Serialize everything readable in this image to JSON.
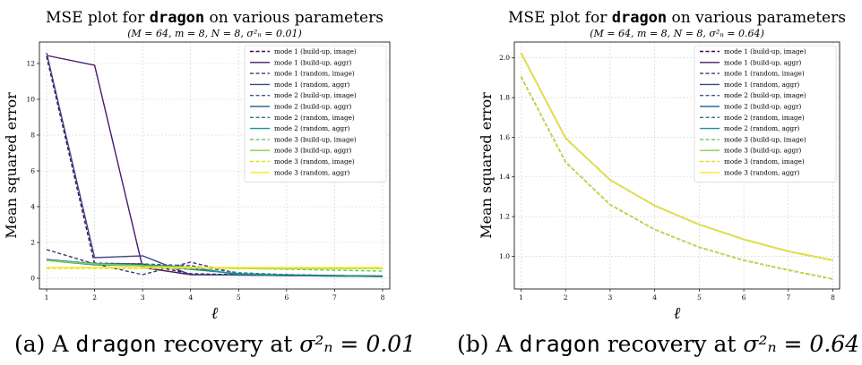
{
  "captions": [
    {
      "prefix": "(a) A ",
      "mono": "dragon",
      "suffix": " recovery at ",
      "math": "σ²ₙ = 0.01"
    },
    {
      "prefix": "(b) A ",
      "mono": "dragon",
      "suffix": " recovery at ",
      "math": "σ²ₙ = 0.64"
    }
  ],
  "chart_data": [
    {
      "type": "line",
      "title_prefix": "MSE plot for ",
      "title_mono": "dragon",
      "title_suffix": " on various parameters",
      "subtitle": "(M = 64, m = 8, N = 8, σ²ₙ = 0.01)",
      "xlabel": "ℓ",
      "ylabel": "Mean squared error",
      "x": [
        1,
        2,
        3,
        4,
        5,
        6,
        7,
        8
      ],
      "xticks": [
        "1",
        "2",
        "3",
        "4",
        "5",
        "6",
        "7",
        "8"
      ],
      "yticks": [
        0,
        2,
        4,
        6,
        8,
        10,
        12
      ],
      "ytick_labels": [
        "0",
        "2",
        "4",
        "6",
        "8",
        "10",
        "12"
      ],
      "xlim": [
        0.85,
        8.15
      ],
      "ylim": [
        -0.6,
        13.2
      ],
      "grid": true,
      "legend_position": "top-right",
      "series": [
        {
          "name": "mode 1 (build-up, image)",
          "color": "#440154",
          "dash": true,
          "values": [
            12.4,
            0.8,
            0.8,
            0.25,
            0.2,
            0.18,
            0.15,
            0.12
          ]
        },
        {
          "name": "mode 1 (build-up, aggr)",
          "color": "#481a6c",
          "dash": false,
          "values": [
            12.45,
            11.9,
            0.6,
            0.2,
            0.18,
            0.15,
            0.13,
            0.1
          ]
        },
        {
          "name": "mode 1 (random, image)",
          "color": "#472f7d",
          "dash": true,
          "values": [
            1.6,
            0.8,
            0.2,
            0.9,
            0.25,
            0.2,
            0.15,
            0.12
          ]
        },
        {
          "name": "mode 1 (random, aggr)",
          "color": "#414487",
          "dash": false,
          "values": [
            12.6,
            1.15,
            1.25,
            0.2,
            0.18,
            0.15,
            0.12,
            0.1
          ]
        },
        {
          "name": "mode 2 (build-up, image)",
          "color": "#39568c",
          "dash": true,
          "values": [
            1.0,
            0.85,
            0.8,
            0.7,
            0.3,
            0.2,
            0.15,
            0.12
          ]
        },
        {
          "name": "mode 2 (build-up, aggr)",
          "color": "#31688e",
          "dash": false,
          "values": [
            1.05,
            0.8,
            0.75,
            0.6,
            0.2,
            0.15,
            0.12,
            0.1
          ]
        },
        {
          "name": "mode 2 (random, image)",
          "color": "#2a788e",
          "dash": true,
          "values": [
            1.0,
            0.8,
            0.75,
            0.7,
            0.3,
            0.2,
            0.15,
            0.12
          ]
        },
        {
          "name": "mode 2 (random, aggr)",
          "color": "#21918c",
          "dash": false,
          "values": [
            1.0,
            0.75,
            0.7,
            0.5,
            0.25,
            0.18,
            0.14,
            0.1
          ]
        },
        {
          "name": "mode 3 (build-up, image)",
          "color": "#5ec962",
          "dash": true,
          "values": [
            1.0,
            0.8,
            0.7,
            0.6,
            0.55,
            0.5,
            0.45,
            0.4
          ]
        },
        {
          "name": "mode 3 (build-up, aggr)",
          "color": "#7ad151",
          "dash": false,
          "values": [
            1.0,
            0.8,
            0.7,
            0.6,
            0.55,
            0.55,
            0.55,
            0.55
          ]
        },
        {
          "name": "mode 3 (random, image)",
          "color": "#d8e219",
          "dash": true,
          "values": [
            0.55,
            0.55,
            0.55,
            0.55,
            0.55,
            0.55,
            0.55,
            0.55
          ]
        },
        {
          "name": "mode 3 (random, aggr)",
          "color": "#fde725",
          "dash": false,
          "values": [
            0.6,
            0.6,
            0.6,
            0.6,
            0.6,
            0.6,
            0.6,
            0.6
          ]
        }
      ]
    },
    {
      "type": "line",
      "title_prefix": "MSE plot for ",
      "title_mono": "dragon",
      "title_suffix": " on various parameters",
      "subtitle": "(M = 64, m = 8, N = 8, σ²ₙ = 0.64)",
      "xlabel": "ℓ",
      "ylabel": "Mean squared error",
      "x": [
        1,
        2,
        3,
        4,
        5,
        6,
        7,
        8
      ],
      "xticks": [
        "1",
        "2",
        "3",
        "4",
        "5",
        "6",
        "7",
        "8"
      ],
      "yticks": [
        1.0,
        1.2,
        1.4,
        1.6,
        1.8,
        2.0
      ],
      "ytick_labels": [
        "1.0",
        "1.2",
        "1.4",
        "1.6",
        "1.8",
        "2.0"
      ],
      "xlim": [
        0.85,
        8.15
      ],
      "ylim": [
        0.835,
        2.08
      ],
      "grid": true,
      "legend_position": "top-right",
      "series": [
        {
          "name": "mode 1 (build-up, image)",
          "color": "#440154",
          "dash": true,
          "values": [
            1.905,
            1.475,
            1.26,
            1.135,
            1.045,
            0.98,
            0.93,
            0.885
          ]
        },
        {
          "name": "mode 1 (build-up, aggr)",
          "color": "#481a6c",
          "dash": false,
          "values": [
            2.025,
            1.595,
            1.385,
            1.255,
            1.16,
            1.085,
            1.025,
            0.98
          ]
        },
        {
          "name": "mode 1 (random, image)",
          "color": "#472f7d",
          "dash": true,
          "values": [
            1.905,
            1.475,
            1.26,
            1.135,
            1.045,
            0.98,
            0.93,
            0.885
          ]
        },
        {
          "name": "mode 1 (random, aggr)",
          "color": "#414487",
          "dash": false,
          "values": [
            2.025,
            1.595,
            1.385,
            1.255,
            1.16,
            1.085,
            1.025,
            0.98
          ]
        },
        {
          "name": "mode 2 (build-up, image)",
          "color": "#39568c",
          "dash": true,
          "values": [
            1.905,
            1.475,
            1.26,
            1.135,
            1.045,
            0.98,
            0.93,
            0.885
          ]
        },
        {
          "name": "mode 2 (build-up, aggr)",
          "color": "#31688e",
          "dash": false,
          "values": [
            2.025,
            1.595,
            1.385,
            1.255,
            1.16,
            1.085,
            1.025,
            0.98
          ]
        },
        {
          "name": "mode 2 (random, image)",
          "color": "#2a788e",
          "dash": true,
          "values": [
            1.905,
            1.475,
            1.26,
            1.135,
            1.045,
            0.98,
            0.93,
            0.885
          ]
        },
        {
          "name": "mode 2 (random, aggr)",
          "color": "#21918c",
          "dash": false,
          "values": [
            2.025,
            1.595,
            1.385,
            1.255,
            1.16,
            1.085,
            1.025,
            0.98
          ]
        },
        {
          "name": "mode 3 (build-up, image)",
          "color": "#5ec962",
          "dash": true,
          "values": [
            1.905,
            1.475,
            1.26,
            1.135,
            1.045,
            0.98,
            0.93,
            0.885
          ]
        },
        {
          "name": "mode 3 (build-up, aggr)",
          "color": "#7ad151",
          "dash": false,
          "values": [
            2.025,
            1.595,
            1.385,
            1.255,
            1.16,
            1.085,
            1.025,
            0.98
          ]
        },
        {
          "name": "mode 3 (random, image)",
          "color": "#d8e219",
          "dash": true,
          "values": [
            1.905,
            1.475,
            1.26,
            1.135,
            1.045,
            0.98,
            0.93,
            0.885
          ]
        },
        {
          "name": "mode 3 (random, aggr)",
          "color": "#fde725",
          "dash": false,
          "values": [
            2.025,
            1.595,
            1.385,
            1.255,
            1.16,
            1.085,
            1.025,
            0.98
          ]
        }
      ]
    }
  ]
}
